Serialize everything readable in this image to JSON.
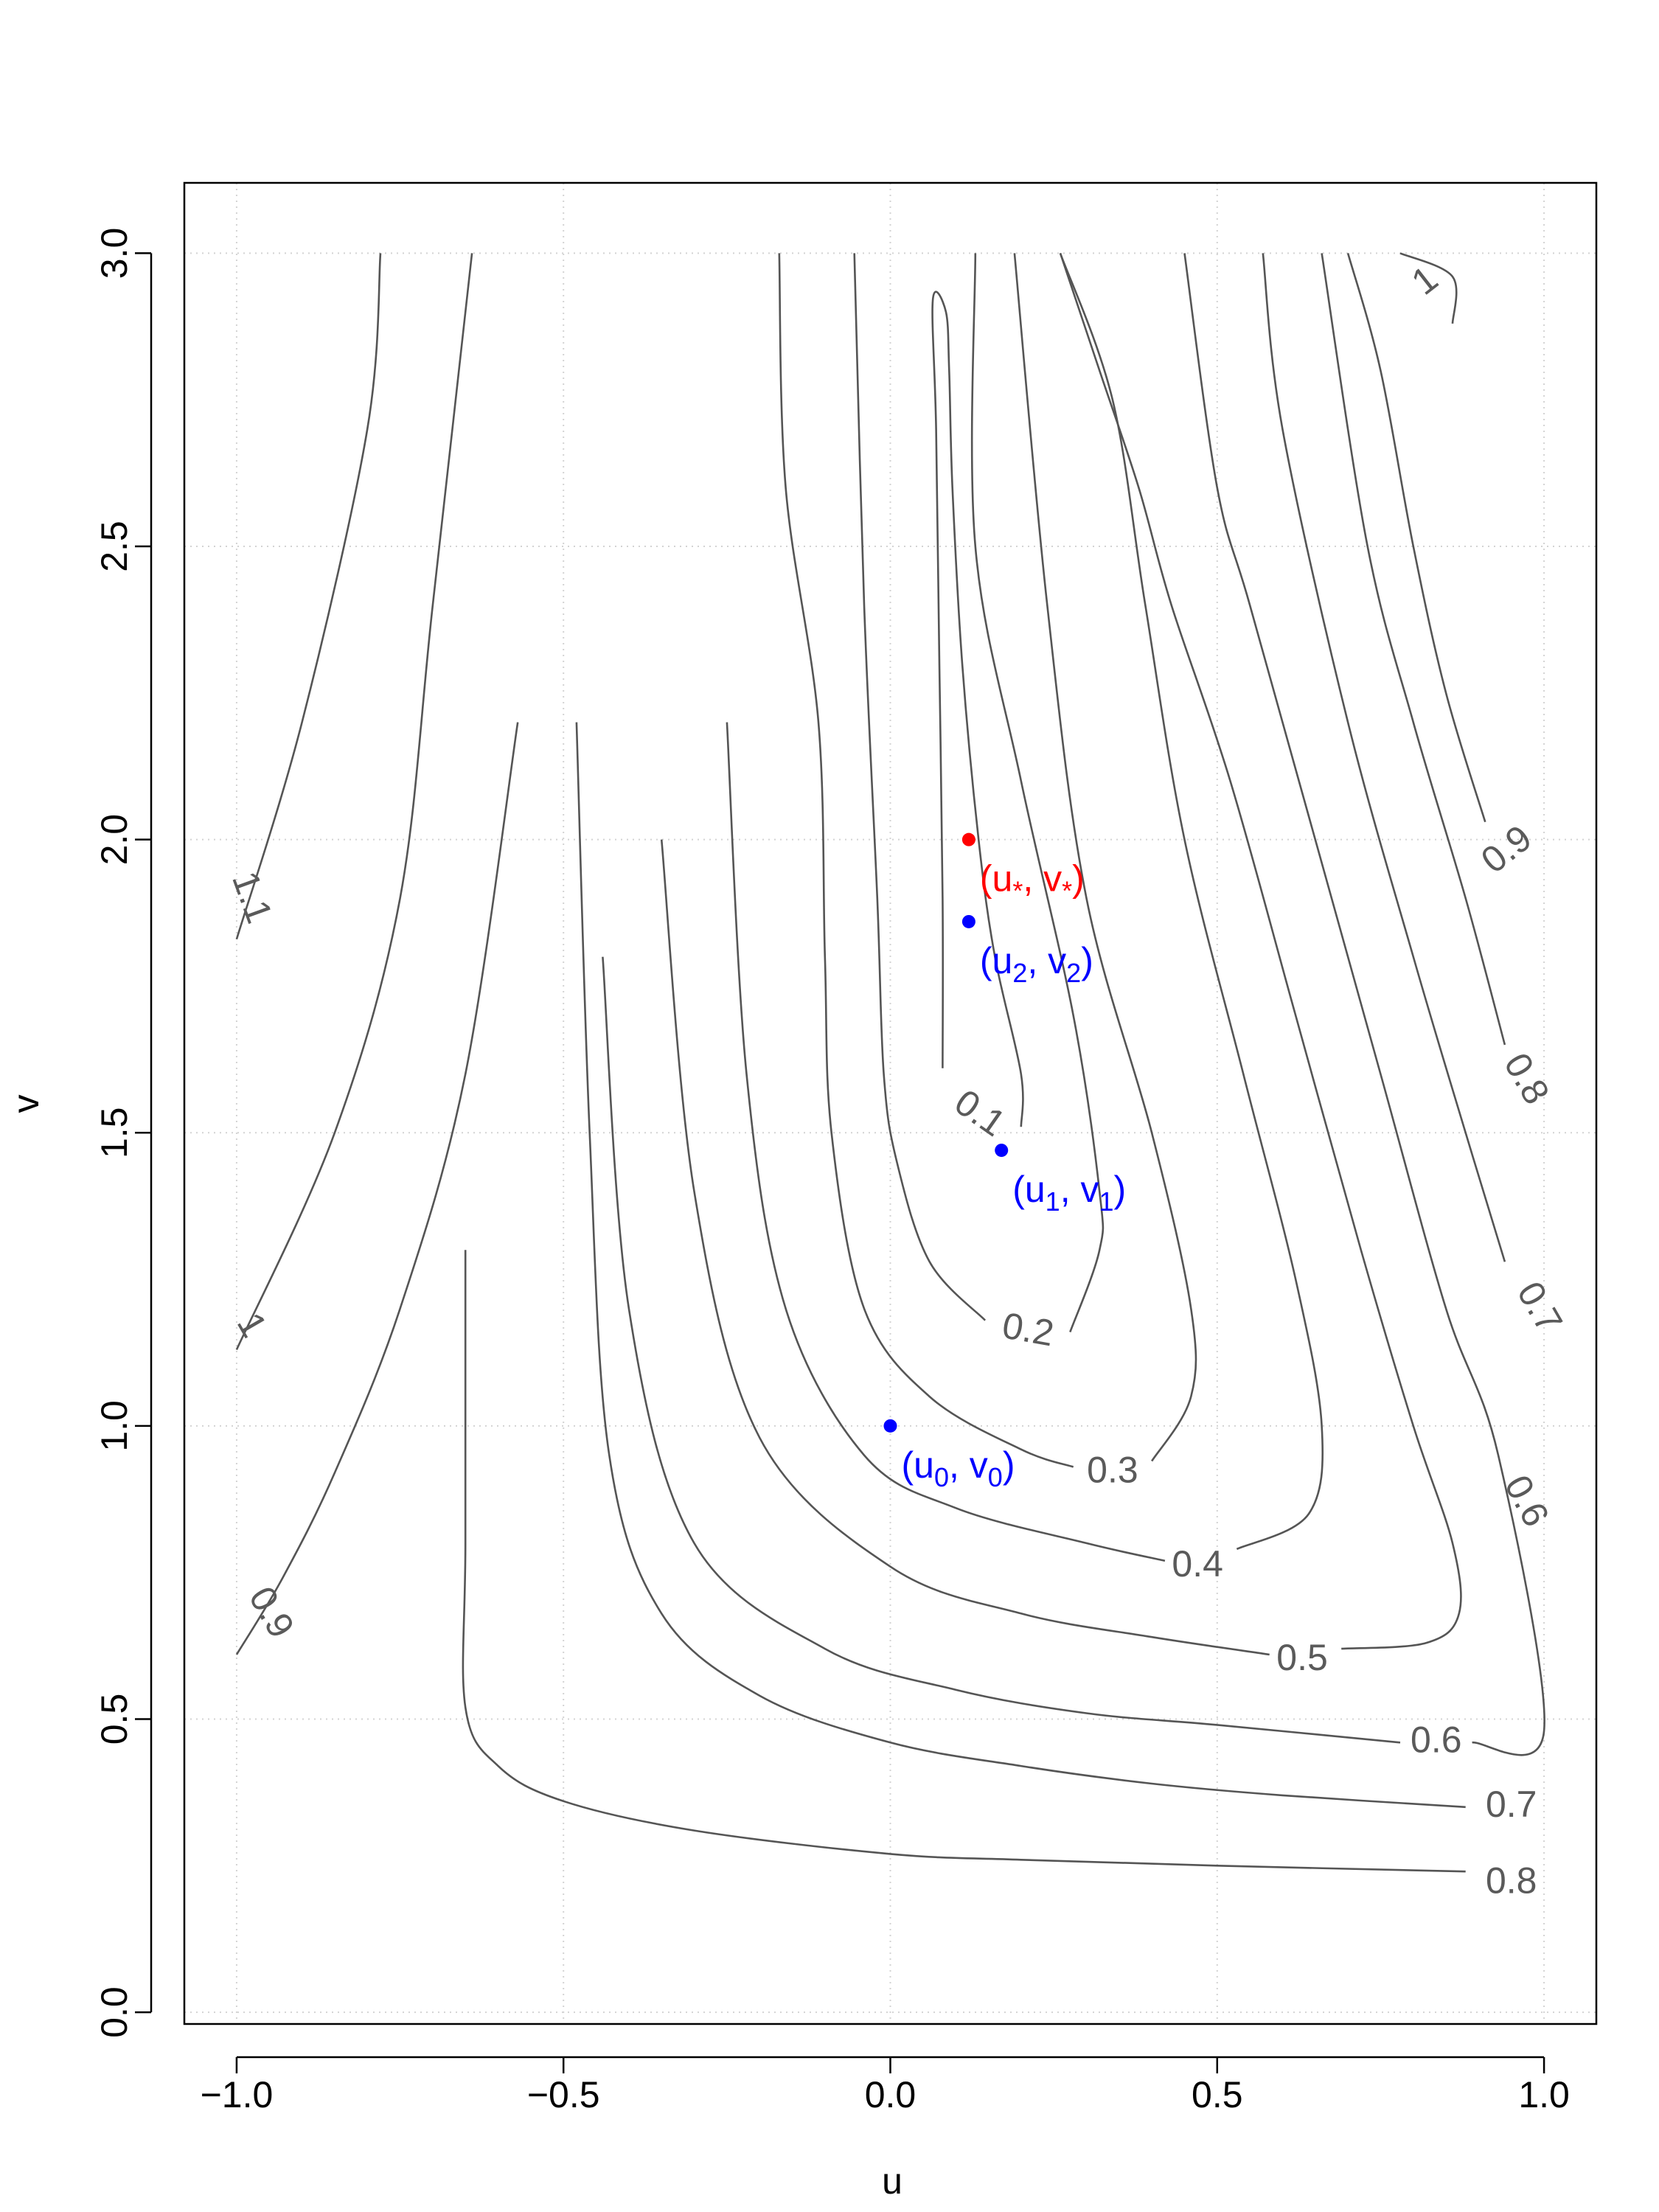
{
  "chart_data": {
    "type": "contour",
    "xlabel": "u",
    "ylabel": "v",
    "xlim": [
      -1.08,
      1.08
    ],
    "ylim": [
      -0.02,
      3.12
    ],
    "xticks": [
      {
        "value": -1.0,
        "label": "−1.0"
      },
      {
        "value": -0.5,
        "label": "−0.5"
      },
      {
        "value": 0.0,
        "label": "0.0"
      },
      {
        "value": 0.5,
        "label": "0.5"
      },
      {
        "value": 1.0,
        "label": "1.0"
      }
    ],
    "yticks": [
      {
        "value": 0.0,
        "label": "0.0"
      },
      {
        "value": 0.5,
        "label": "0.5"
      },
      {
        "value": 1.0,
        "label": "1.0"
      },
      {
        "value": 1.5,
        "label": "1.5"
      },
      {
        "value": 2.0,
        "label": "2.0"
      },
      {
        "value": 2.5,
        "label": "2.5"
      },
      {
        "value": 3.0,
        "label": "3.0"
      }
    ],
    "grid": true,
    "line_color": "#555555",
    "contours": [
      {
        "level": "0.1",
        "label": "0.1",
        "label_at": [
          0.135,
          1.53
        ],
        "label_rotation": 35,
        "points": [
          [
            0.08,
            1.61
          ],
          [
            0.08,
            1.9
          ],
          [
            0.075,
            2.3
          ],
          [
            0.07,
            2.7
          ],
          [
            0.065,
            2.92
          ],
          [
            0.085,
            2.9
          ],
          [
            0.09,
            2.8
          ],
          [
            0.095,
            2.6
          ],
          [
            0.11,
            2.3
          ],
          [
            0.135,
            2.0
          ],
          [
            0.16,
            1.8
          ],
          [
            0.2,
            1.6
          ],
          [
            0.2,
            1.51
          ]
        ]
      },
      {
        "level": "0.2",
        "label": "0.2",
        "label_at": [
          0.21,
          1.16
        ],
        "label_rotation": 10,
        "points": [
          [
            0.145,
            1.18
          ],
          [
            0.06,
            1.28
          ],
          [
            0.01,
            1.45
          ],
          [
            -0.01,
            1.6
          ],
          [
            -0.02,
            1.9
          ],
          [
            -0.04,
            2.4
          ],
          [
            -0.055,
            3.0
          ],
          [
            0.275,
            1.16
          ],
          [
            0.32,
            1.3
          ],
          [
            0.32,
            1.4
          ],
          [
            0.28,
            1.7
          ],
          [
            0.2,
            2.1
          ],
          [
            0.13,
            2.5
          ],
          [
            0.13,
            3.0
          ]
        ]
      },
      {
        "level": "0.3",
        "label": "0.3",
        "label_at": [
          0.34,
          0.92
        ],
        "label_rotation": 0,
        "points": [
          [
            0.28,
            0.93
          ],
          [
            0.2,
            0.96
          ],
          [
            0.06,
            1.05
          ],
          [
            -0.04,
            1.2
          ],
          [
            -0.09,
            1.5
          ],
          [
            -0.1,
            1.8
          ],
          [
            -0.11,
            2.2
          ],
          [
            -0.16,
            2.6
          ],
          [
            -0.17,
            3.0
          ],
          [
            0.4,
            0.94
          ],
          [
            0.46,
            1.05
          ],
          [
            0.46,
            1.2
          ],
          [
            0.4,
            1.5
          ],
          [
            0.3,
            1.9
          ],
          [
            0.24,
            2.4
          ],
          [
            0.19,
            3.0
          ]
        ]
      },
      {
        "level": "0.4",
        "label": "0.4",
        "label_at": [
          0.47,
          0.76
        ],
        "label_rotation": 0,
        "points": [
          [
            0.42,
            0.77
          ],
          [
            0.3,
            0.8
          ],
          [
            0.1,
            0.86
          ],
          [
            -0.04,
            0.95
          ],
          [
            -0.16,
            1.2
          ],
          [
            -0.22,
            1.6
          ],
          [
            -0.25,
            2.2
          ],
          [
            -0.27,
            3.0
          ],
          [
            0.53,
            0.79
          ],
          [
            0.64,
            0.85
          ],
          [
            0.66,
            1.0
          ],
          [
            0.62,
            1.25
          ],
          [
            0.54,
            1.6
          ],
          [
            0.45,
            2.0
          ],
          [
            0.39,
            2.4
          ],
          [
            0.34,
            2.75
          ],
          [
            0.26,
            3.0
          ]
        ]
      },
      {
        "level": "0.5",
        "label": "0.5",
        "label_at": [
          0.63,
          0.6
        ],
        "label_rotation": 0,
        "points": [
          [
            0.58,
            0.61
          ],
          [
            0.4,
            0.64
          ],
          [
            0.2,
            0.68
          ],
          [
            0.0,
            0.76
          ],
          [
            -0.2,
            0.98
          ],
          [
            -0.3,
            1.4
          ],
          [
            -0.35,
            2.0
          ],
          [
            -0.39,
            3.0
          ],
          [
            0.69,
            0.62
          ],
          [
            0.82,
            0.63
          ],
          [
            0.87,
            0.68
          ],
          [
            0.86,
            0.8
          ],
          [
            0.8,
            1.0
          ],
          [
            0.72,
            1.3
          ],
          [
            0.62,
            1.7
          ],
          [
            0.52,
            2.1
          ],
          [
            0.43,
            2.4
          ],
          [
            0.38,
            2.6
          ],
          [
            0.32,
            2.8
          ],
          [
            0.26,
            3.0
          ]
        ]
      },
      {
        "level": "0.6",
        "label": "0.6",
        "label_at": [
          0.835,
          0.46
        ],
        "label_rotation": 0,
        "label2_at": [
          0.97,
          0.87
        ],
        "label2_rotation": 62,
        "points": [
          [
            0.78,
            0.46
          ],
          [
            0.5,
            0.49
          ],
          [
            0.3,
            0.51
          ],
          [
            0.1,
            0.55
          ],
          [
            -0.1,
            0.62
          ],
          [
            -0.3,
            0.8
          ],
          [
            -0.4,
            1.2
          ],
          [
            -0.44,
            1.8
          ],
          [
            -0.48,
            3.0
          ],
          [
            0.89,
            0.46
          ],
          [
            1.0,
            0.48
          ],
          [
            0.93,
            0.95
          ],
          [
            0.85,
            1.2
          ],
          [
            0.75,
            1.6
          ],
          [
            0.65,
            2.0
          ],
          [
            0.55,
            2.4
          ],
          [
            0.5,
            2.6
          ],
          [
            0.45,
            3.0
          ]
        ]
      },
      {
        "level": "0.7",
        "label": "0.7",
        "label_at": [
          0.95,
          0.35
        ],
        "label_rotation": 0,
        "label2_at": [
          0.99,
          1.2
        ],
        "label2_rotation": 60,
        "points": [
          [
            0.88,
            0.35
          ],
          [
            0.6,
            0.37
          ],
          [
            0.4,
            0.39
          ],
          [
            0.2,
            0.42
          ],
          [
            0.0,
            0.46
          ],
          [
            -0.2,
            0.54
          ],
          [
            -0.35,
            0.68
          ],
          [
            -0.43,
            0.95
          ],
          [
            -0.46,
            1.5
          ],
          [
            -0.48,
            2.2
          ],
          [
            -0.55,
            3.0
          ],
          [
            0.94,
            1.28
          ],
          [
            0.88,
            1.5
          ],
          [
            0.8,
            1.8
          ],
          [
            0.7,
            2.2
          ],
          [
            0.6,
            2.7
          ],
          [
            0.57,
            3.0
          ]
        ]
      },
      {
        "level": "0.8",
        "label": "0.8",
        "label_at": [
          0.95,
          0.22
        ],
        "label_rotation": 0,
        "label2_at": [
          0.97,
          1.59
        ],
        "label2_rotation": 60,
        "points": [
          [
            0.88,
            0.24
          ],
          [
            0.5,
            0.25
          ],
          [
            0.2,
            0.26
          ],
          [
            0.0,
            0.27
          ],
          [
            -0.3,
            0.31
          ],
          [
            -0.5,
            0.36
          ],
          [
            -0.6,
            0.42
          ],
          [
            -0.65,
            0.52
          ],
          [
            -0.65,
            0.8
          ],
          [
            -0.65,
            1.3
          ],
          [
            -0.68,
            2.2
          ],
          [
            -0.72,
            3.0
          ],
          [
            0.94,
            1.65
          ],
          [
            0.88,
            1.9
          ],
          [
            0.8,
            2.2
          ],
          [
            0.73,
            2.5
          ],
          [
            0.66,
            3.0
          ]
        ]
      },
      {
        "level": "0.9",
        "label": "0.9",
        "label_at": [
          -0.95,
          0.68
        ],
        "label_rotation": 60,
        "label2_at": [
          0.945,
          1.98
        ],
        "label2_rotation": -38,
        "points": [
          [
            -1.0,
            0.61
          ],
          [
            -0.93,
            0.74
          ],
          [
            -0.85,
            0.92
          ],
          [
            -0.75,
            1.2
          ],
          [
            -0.65,
            1.6
          ],
          [
            -0.57,
            2.2
          ],
          [
            -0.53,
            3.0
          ],
          [
            0.91,
            2.03
          ],
          [
            0.85,
            2.25
          ],
          [
            0.8,
            2.5
          ],
          [
            0.75,
            2.8
          ],
          [
            0.7,
            3.0
          ]
        ]
      },
      {
        "level": "1",
        "label": "1",
        "label_at": [
          -0.98,
          1.17
        ],
        "label_rotation": 60,
        "label2_at": [
          0.82,
          2.95
        ],
        "label2_rotation": -38,
        "points": [
          [
            -1.0,
            1.13
          ],
          [
            -0.85,
            1.5
          ],
          [
            -0.75,
            1.9
          ],
          [
            -0.7,
            2.4
          ],
          [
            -0.64,
            3.0
          ],
          [
            0.78,
            3.0
          ],
          [
            0.86,
            2.96
          ],
          [
            0.86,
            2.88
          ]
        ]
      },
      {
        "level": "1.1",
        "label": "1.1",
        "label_at": [
          -0.98,
          1.9
        ],
        "label_rotation": 70,
        "points": [
          [
            -1.0,
            1.83
          ],
          [
            -0.9,
            2.2
          ],
          [
            -0.8,
            2.7
          ],
          [
            -0.78,
            3.0
          ]
        ]
      }
    ],
    "points": [
      {
        "name": "(u*, v*)",
        "u": 0.12,
        "v": 2.0,
        "color": "#ff0000",
        "label_base": "(u",
        "label_sub": "*",
        "label_mid": ", v",
        "label_sub2": "*",
        "label_end": ")"
      },
      {
        "name": "(u2, v2)",
        "u": 0.12,
        "v": 1.86,
        "color": "#0000ff",
        "label_base": "(u",
        "label_sub": "2",
        "label_mid": ", v",
        "label_sub2": "2",
        "label_end": ")"
      },
      {
        "name": "(u1, v1)",
        "u": 0.17,
        "v": 1.47,
        "color": "#0000ff",
        "label_base": "(u",
        "label_sub": "1",
        "label_mid": ", v",
        "label_sub2": "1",
        "label_end": ")"
      },
      {
        "name": "(u0, v0)",
        "u": 0.0,
        "v": 1.0,
        "color": "#0000ff",
        "label_base": "(u",
        "label_sub": "0",
        "label_mid": ", v",
        "label_sub2": "0",
        "label_end": ")"
      }
    ]
  }
}
